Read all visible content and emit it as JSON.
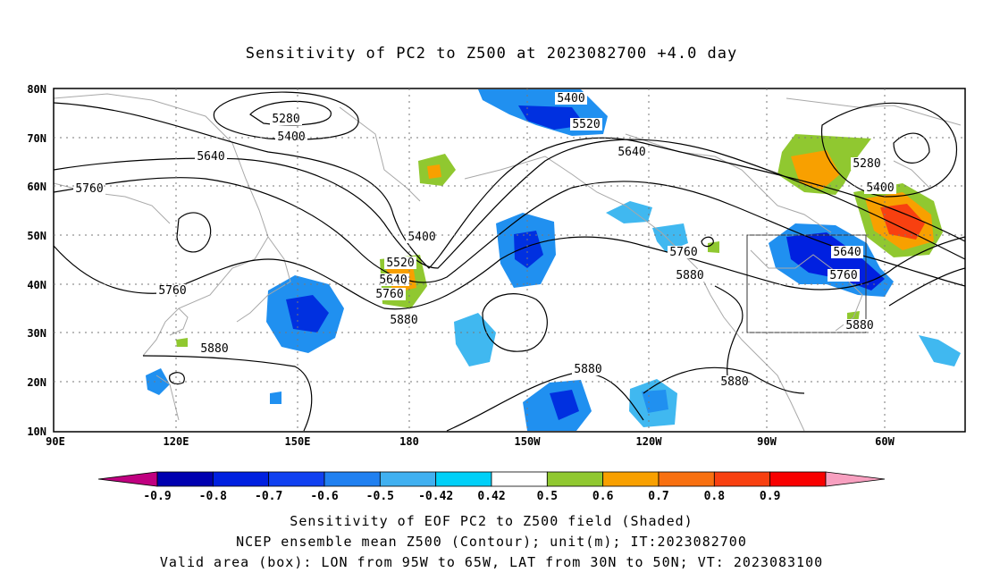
{
  "title": "Sensitivity of PC2 to Z500 at 2023082700 +4.0 day",
  "map": {
    "extent": {
      "lon_min": 90,
      "lon_max": 330,
      "lat_min": 10,
      "lat_max": 80
    },
    "lat_ticks": [
      "80N",
      "70N",
      "60N",
      "50N",
      "40N",
      "30N",
      "20N",
      "10N"
    ],
    "lon_ticks": [
      "90E",
      "120E",
      "150E",
      "180",
      "150W",
      "120W",
      "90W",
      "60W"
    ],
    "grid": "dotted",
    "box": {
      "lon_w": -95,
      "lon_e": -65,
      "lat_s": 30,
      "lat_n": 50
    }
  },
  "contours": {
    "unit": "m",
    "labels": [
      "5280",
      "5400",
      "5640",
      "5760",
      "5880",
      "5400",
      "5520",
      "5640",
      "5760",
      "5880",
      "5400",
      "5520",
      "5640",
      "5880",
      "5760",
      "5880",
      "5280",
      "5400",
      "5640",
      "5760",
      "5880"
    ]
  },
  "colorbar": {
    "levels": [
      "-0.9",
      "-0.8",
      "-0.7",
      "-0.6",
      "-0.5",
      "-0.42",
      "0.42",
      "0.5",
      "0.6",
      "0.7",
      "0.8",
      "0.9"
    ],
    "colors": [
      "#c00080",
      "#0000b0",
      "#0020e0",
      "#1040f0",
      "#2080f0",
      "#40b0f0",
      "#00d0f8",
      "#ffffff",
      "#90c830",
      "#f8a000",
      "#f87010",
      "#f84010",
      "#f80000",
      "#f8a0c0"
    ]
  },
  "footer": {
    "line1": "Sensitivity of EOF PC2 to Z500 field (Shaded)",
    "line2": "NCEP ensemble mean Z500 (Contour); unit(m); IT:2023082700",
    "line3": "Valid area (box): LON from 95W to 65W, LAT from 30N to 50N; VT: 2023083100"
  }
}
